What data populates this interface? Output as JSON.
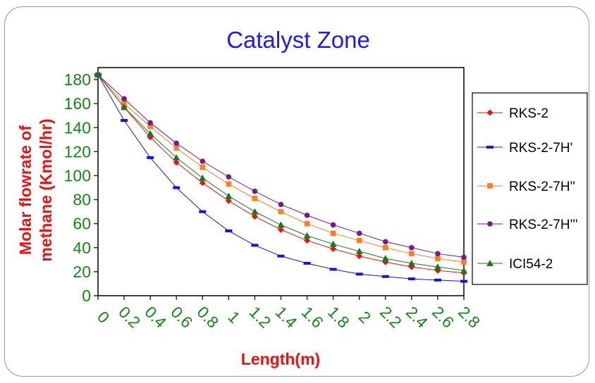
{
  "chart_data": {
    "type": "line",
    "title": "Catalyst Zone",
    "xlabel": "Length(m)",
    "ylabel_lines": [
      "Molar flowrate of",
      "methane (Kmol/hr)"
    ],
    "x": [
      0,
      0.2,
      0.4,
      0.6,
      0.8,
      1,
      1.2,
      1.4,
      1.6,
      1.8,
      2,
      2.2,
      2.4,
      2.6,
      2.8
    ],
    "x_tick_labels": [
      "0",
      "0.2",
      "0.4",
      "0.6",
      "0.8",
      "1",
      "1.2",
      "1.4",
      "1.6",
      "1.8",
      "2",
      "2.2",
      "2.4",
      "2.6",
      "2.8"
    ],
    "y_ticks": [
      0,
      20,
      40,
      60,
      80,
      100,
      120,
      140,
      160,
      180
    ],
    "ylim": [
      0,
      190
    ],
    "grid": false,
    "legend_position": "right",
    "series": [
      {
        "name": "RKS-2",
        "color": "#ee1111",
        "marker": "diamond",
        "values": [
          184,
          157,
          132,
          111,
          94,
          79,
          66,
          55,
          46,
          39,
          33,
          28,
          24,
          21,
          19
        ]
      },
      {
        "name": "RKS-2-7H'",
        "color": "#1111ee",
        "marker": "dash",
        "values": [
          184,
          146,
          115,
          90,
          70,
          54,
          42,
          33,
          27,
          22,
          18,
          16,
          14,
          13,
          12
        ]
      },
      {
        "name": "RKS-2-7H''",
        "color": "#ff7f1e",
        "marker": "square",
        "values": [
          184,
          160,
          141,
          123,
          107,
          93,
          81,
          70,
          60,
          52,
          46,
          40,
          35,
          31,
          28
        ]
      },
      {
        "name": "RKS-2-7H'''",
        "color": "#7a1a8a",
        "marker": "circle",
        "values": [
          184,
          164,
          144,
          127,
          112,
          99,
          87,
          76,
          67,
          59,
          52,
          45,
          40,
          35,
          32
        ]
      },
      {
        "name": "ICI54-2",
        "color": "#1a7a1a",
        "marker": "triangle",
        "values": [
          184,
          157,
          135,
          115,
          98,
          83,
          70,
          59,
          50,
          43,
          37,
          31,
          27,
          24,
          21
        ]
      }
    ]
  }
}
